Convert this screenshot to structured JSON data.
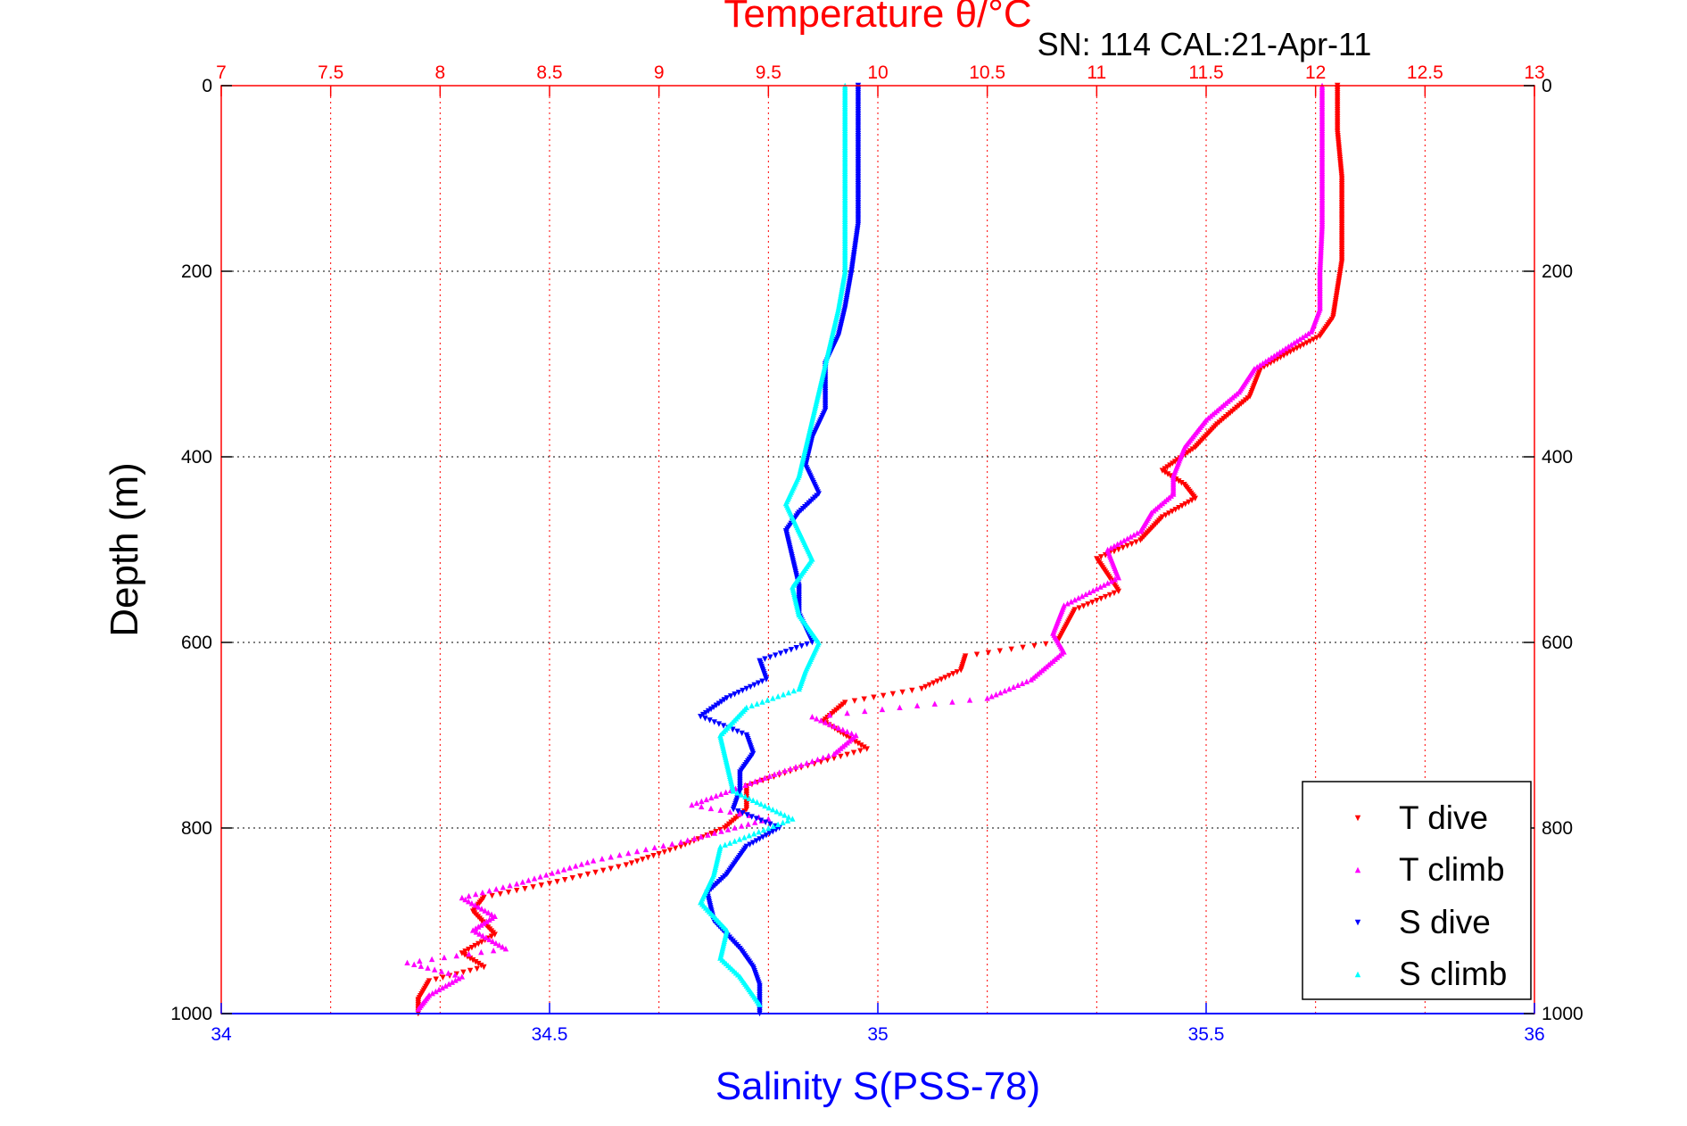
{
  "chart_data": {
    "type": "scatter",
    "title": "Temperature θ/°C",
    "annotation": "SN: 114  CAL:21-Apr-11",
    "ylabel": "Depth (m)",
    "xlabel_bottom": "Salinity S(PSS-78)",
    "xlabel_top": "Temperature θ/°C",
    "ylim": [
      0,
      1000
    ],
    "y_reversed": true,
    "x_top_lim": [
      7,
      13
    ],
    "x_bottom_lim": [
      34,
      36
    ],
    "y_ticks": [
      "0",
      "200",
      "400",
      "600",
      "800",
      "1000"
    ],
    "x_top_ticks": [
      "7",
      "7.5",
      "8",
      "8.5",
      "9",
      "9.5",
      "10",
      "10.5",
      "11",
      "11.5",
      "12",
      "12.5",
      "13"
    ],
    "x_bottom_ticks": [
      "34",
      "34.5",
      "35",
      "35.5",
      "36"
    ],
    "grid": true,
    "legend_placement": "bottom-right",
    "colors": {
      "t_dive": "#ff0000",
      "t_climb": "#ff00ff",
      "s_dive": "#0000ff",
      "s_climb": "#00ffff",
      "top_axis": "#ff0000",
      "bottom_axis": "#0000ff"
    },
    "series": [
      {
        "name": "T dive",
        "axis": "top",
        "color": "#ff0000",
        "marker": "triangle-down",
        "points": [
          [
            12.1,
            0
          ],
          [
            12.1,
            50
          ],
          [
            12.12,
            100
          ],
          [
            12.12,
            150
          ],
          [
            12.12,
            190
          ],
          [
            12.1,
            220
          ],
          [
            12.08,
            250
          ],
          [
            12.02,
            270
          ],
          [
            11.9,
            285
          ],
          [
            11.75,
            305
          ],
          [
            11.7,
            335
          ],
          [
            11.55,
            365
          ],
          [
            11.45,
            390
          ],
          [
            11.3,
            415
          ],
          [
            11.4,
            430
          ],
          [
            11.45,
            445
          ],
          [
            11.3,
            465
          ],
          [
            11.2,
            490
          ],
          [
            11.0,
            510
          ],
          [
            11.1,
            545
          ],
          [
            10.9,
            565
          ],
          [
            10.82,
            600
          ],
          [
            10.4,
            615
          ],
          [
            10.38,
            630
          ],
          [
            10.2,
            650
          ],
          [
            9.85,
            665
          ],
          [
            9.75,
            685
          ],
          [
            9.95,
            715
          ],
          [
            9.65,
            735
          ],
          [
            9.4,
            755
          ],
          [
            9.4,
            780
          ],
          [
            9.3,
            800
          ],
          [
            9.1,
            820
          ],
          [
            8.85,
            840
          ],
          [
            8.5,
            860
          ],
          [
            8.2,
            875
          ],
          [
            8.15,
            890
          ],
          [
            8.25,
            915
          ],
          [
            8.1,
            935
          ],
          [
            8.2,
            950
          ],
          [
            7.95,
            965
          ],
          [
            7.9,
            985
          ],
          [
            7.9,
            1000
          ]
        ]
      },
      {
        "name": "T climb",
        "axis": "top",
        "color": "#ff00ff",
        "marker": "triangle-up",
        "points": [
          [
            12.03,
            0
          ],
          [
            12.03,
            50
          ],
          [
            12.03,
            100
          ],
          [
            12.03,
            150
          ],
          [
            12.02,
            200
          ],
          [
            12.02,
            240
          ],
          [
            11.98,
            265
          ],
          [
            11.85,
            285
          ],
          [
            11.72,
            305
          ],
          [
            11.65,
            330
          ],
          [
            11.5,
            360
          ],
          [
            11.4,
            390
          ],
          [
            11.35,
            420
          ],
          [
            11.35,
            440
          ],
          [
            11.25,
            460
          ],
          [
            11.2,
            480
          ],
          [
            11.05,
            500
          ],
          [
            11.1,
            530
          ],
          [
            10.85,
            560
          ],
          [
            10.8,
            590
          ],
          [
            10.85,
            610
          ],
          [
            10.7,
            640
          ],
          [
            10.5,
            660
          ],
          [
            10.1,
            670
          ],
          [
            9.7,
            680
          ],
          [
            9.9,
            700
          ],
          [
            9.8,
            720
          ],
          [
            9.55,
            740
          ],
          [
            9.15,
            775
          ],
          [
            9.5,
            790
          ],
          [
            9.1,
            815
          ],
          [
            8.7,
            835
          ],
          [
            8.35,
            860
          ],
          [
            8.1,
            875
          ],
          [
            8.25,
            895
          ],
          [
            8.15,
            910
          ],
          [
            8.3,
            930
          ],
          [
            7.85,
            945
          ],
          [
            8.1,
            960
          ],
          [
            7.95,
            980
          ],
          [
            7.9,
            995
          ]
        ]
      },
      {
        "name": "S dive",
        "axis": "bottom",
        "color": "#0000ff",
        "marker": "triangle-down",
        "points": [
          [
            34.97,
            0
          ],
          [
            34.97,
            50
          ],
          [
            34.97,
            100
          ],
          [
            34.97,
            150
          ],
          [
            34.96,
            200
          ],
          [
            34.95,
            240
          ],
          [
            34.94,
            270
          ],
          [
            34.92,
            300
          ],
          [
            34.92,
            350
          ],
          [
            34.9,
            380
          ],
          [
            34.89,
            410
          ],
          [
            34.91,
            440
          ],
          [
            34.88,
            460
          ],
          [
            34.86,
            480
          ],
          [
            34.87,
            510
          ],
          [
            34.88,
            540
          ],
          [
            34.88,
            570
          ],
          [
            34.9,
            600
          ],
          [
            34.82,
            620
          ],
          [
            34.83,
            640
          ],
          [
            34.77,
            660
          ],
          [
            34.73,
            680
          ],
          [
            34.8,
            700
          ],
          [
            34.81,
            720
          ],
          [
            34.79,
            740
          ],
          [
            34.79,
            760
          ],
          [
            34.78,
            780
          ],
          [
            34.85,
            800
          ],
          [
            34.8,
            820
          ],
          [
            34.77,
            850
          ],
          [
            34.74,
            870
          ],
          [
            34.75,
            900
          ],
          [
            34.79,
            930
          ],
          [
            34.81,
            950
          ],
          [
            34.82,
            970
          ],
          [
            34.82,
            1000
          ]
        ]
      },
      {
        "name": "S climb",
        "axis": "bottom",
        "color": "#00ffff",
        "marker": "triangle-up",
        "points": [
          [
            34.95,
            0
          ],
          [
            34.95,
            50
          ],
          [
            34.95,
            100
          ],
          [
            34.95,
            150
          ],
          [
            34.95,
            200
          ],
          [
            34.94,
            240
          ],
          [
            34.93,
            270
          ],
          [
            34.92,
            300
          ],
          [
            34.91,
            330
          ],
          [
            34.9,
            360
          ],
          [
            34.89,
            390
          ],
          [
            34.88,
            420
          ],
          [
            34.86,
            450
          ],
          [
            34.88,
            480
          ],
          [
            34.9,
            510
          ],
          [
            34.87,
            540
          ],
          [
            34.88,
            570
          ],
          [
            34.91,
            600
          ],
          [
            34.89,
            630
          ],
          [
            34.88,
            650
          ],
          [
            34.8,
            670
          ],
          [
            34.76,
            700
          ],
          [
            34.77,
            730
          ],
          [
            34.78,
            760
          ],
          [
            34.87,
            790
          ],
          [
            34.76,
            820
          ],
          [
            34.75,
            850
          ],
          [
            34.73,
            880
          ],
          [
            34.77,
            910
          ],
          [
            34.76,
            940
          ],
          [
            34.79,
            960
          ],
          [
            34.82,
            990
          ]
        ]
      }
    ]
  }
}
